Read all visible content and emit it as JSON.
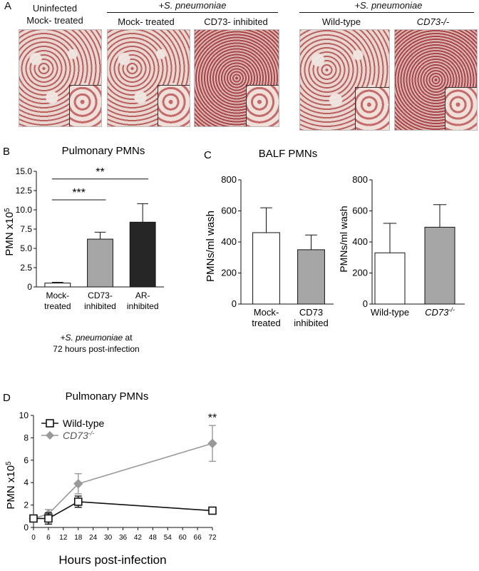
{
  "panelA": {
    "letter": "A",
    "groups": [
      {
        "header": "+S. pneumoniae"
      },
      {
        "header": "+S. pneumoniae"
      }
    ],
    "images": [
      {
        "label_line1": "Uninfected",
        "label_line2": "Mock- treated"
      },
      {
        "label_line1": "",
        "label_line2": "Mock- treated"
      },
      {
        "label_line1": "",
        "label_line2": "CD73- inhibited"
      },
      {
        "label_line1": "",
        "label_line2": "Wild-type"
      },
      {
        "label_line1": "",
        "label_line2": "CD73-/-"
      }
    ]
  },
  "chart_data": [
    {
      "panel": "B",
      "type": "bar",
      "title": "Pulmonary PMNs",
      "ylabel": "PMN x10^5",
      "ylim": [
        0,
        15
      ],
      "yticks": [
        "0",
        "2.5",
        "5.0",
        "7.5",
        "10.0",
        "12.5",
        "15.0"
      ],
      "categories": [
        {
          "line1": "Mock-",
          "line2": "treated"
        },
        {
          "line1": "CD73-",
          "line2": "inhibited"
        },
        {
          "line1": "AR-",
          "line2": "inhibited"
        }
      ],
      "values": [
        0.5,
        6.2,
        8.4
      ],
      "errors": [
        0.1,
        0.9,
        2.4
      ],
      "bar_colors": [
        "#ffffff",
        "#a6a6a6",
        "#262626"
      ],
      "xlabel_line1": "+S. pneumoniae at",
      "xlabel_line2": "72 hours post-infection",
      "significance": [
        {
          "from": 0,
          "to": 1,
          "label": "***"
        },
        {
          "from": 0,
          "to": 2,
          "label": "**"
        }
      ]
    },
    {
      "panel": "C",
      "type": "bar",
      "title": "BALF PMNs",
      "ylabel": "PMNs/ml wash",
      "ylim": [
        0,
        800
      ],
      "yticks": [
        "0",
        "200",
        "400",
        "600",
        "800"
      ],
      "categories": [
        {
          "line1": "Mock-",
          "line2": "treated"
        },
        {
          "line1": "CD73",
          "line2": "inhibited"
        }
      ],
      "values": [
        460,
        350
      ],
      "errors": [
        160,
        95
      ],
      "bar_colors": [
        "#ffffff",
        "#a6a6a6"
      ]
    },
    {
      "panel": "C",
      "type": "bar",
      "ylabel": "PMNs/ml wash",
      "ylim": [
        0,
        800
      ],
      "yticks": [
        "0",
        "200",
        "400",
        "600",
        "800"
      ],
      "categories": [
        {
          "line1": "Wild-type",
          "line2": ""
        },
        {
          "line1": "CD73-/-",
          "line2": ""
        }
      ],
      "values": [
        330,
        495
      ],
      "errors": [
        190,
        145
      ],
      "bar_colors": [
        "#ffffff",
        "#a6a6a6"
      ]
    },
    {
      "panel": "D",
      "type": "line",
      "title": "Pulmonary PMNs",
      "xlabel": "Hours post-infection",
      "ylabel": "PMN x10^5",
      "xlim": [
        0,
        72
      ],
      "ylim": [
        0,
        10
      ],
      "xticks": [
        "0",
        "6",
        "12",
        "18",
        "24",
        "30",
        "36",
        "42",
        "48",
        "54",
        "60",
        "66",
        "72"
      ],
      "yticks": [
        "0",
        "2",
        "4",
        "6",
        "8",
        "10"
      ],
      "legend_position": "top-left",
      "annotation": {
        "x": 72,
        "label": "**"
      },
      "series": [
        {
          "name": "Wild-type",
          "marker": "open-square",
          "color": "#111111",
          "x": [
            0,
            6,
            18,
            72
          ],
          "y": [
            0.8,
            0.8,
            2.3,
            1.5
          ],
          "errors": [
            0.2,
            0.5,
            0.5,
            0.2
          ]
        },
        {
          "name": "CD73-/-",
          "marker": "diamond",
          "color": "#999999",
          "x": [
            0,
            6,
            18,
            72
          ],
          "y": [
            0.8,
            1.2,
            3.9,
            7.5
          ],
          "errors": [
            0.2,
            0.4,
            0.9,
            1.6
          ]
        }
      ]
    }
  ]
}
